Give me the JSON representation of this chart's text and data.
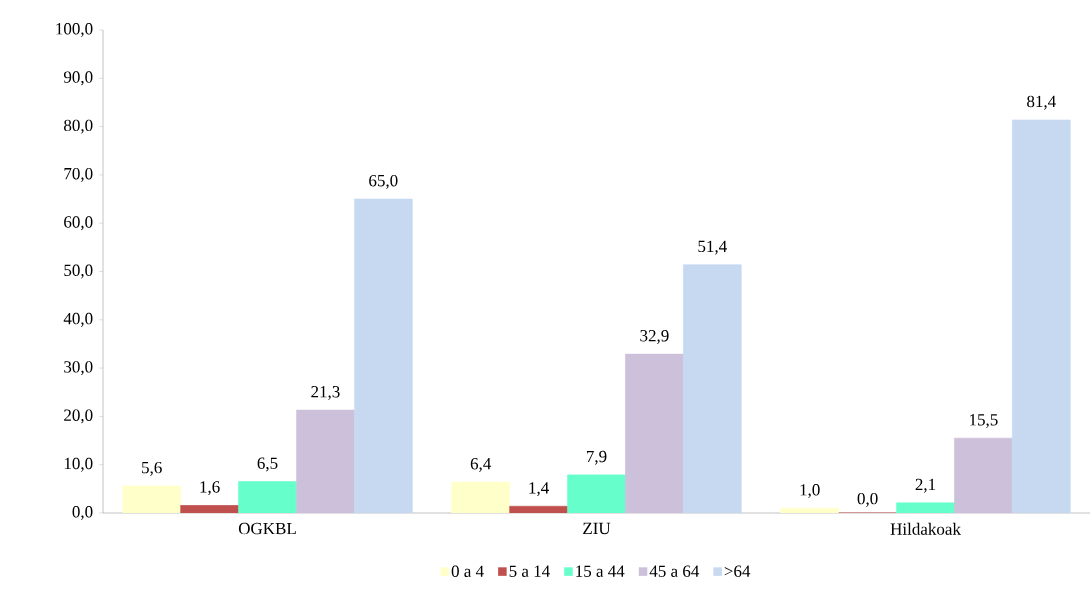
{
  "chart_data": {
    "type": "bar",
    "categories": [
      "OGKBL",
      "ZIU",
      "Hildakoak"
    ],
    "series": [
      {
        "name": "0 a 4",
        "color": "#ffffc9",
        "values": [
          5.6,
          6.4,
          1.0
        ],
        "value_labels": [
          "5,6",
          "6,4",
          "1,0"
        ]
      },
      {
        "name": "5 a 14",
        "color": "#c0504d",
        "values": [
          1.6,
          1.4,
          0.0
        ],
        "value_labels": [
          "1,6",
          "1,4",
          "0,0"
        ]
      },
      {
        "name": "15 a 44",
        "color": "#66ffcc",
        "values": [
          6.5,
          7.9,
          2.1
        ],
        "value_labels": [
          "6,5",
          "7,9",
          "2,1"
        ]
      },
      {
        "name": "45 a 64",
        "color": "#ccc0da",
        "values": [
          21.3,
          32.9,
          15.5
        ],
        "value_labels": [
          "21,3",
          "32,9",
          "15,5"
        ]
      },
      {
        "name": ">64",
        "color": "#c6d9f1",
        "values": [
          65.0,
          51.4,
          81.4
        ],
        "value_labels": [
          "65,0",
          "51,4",
          "81,4"
        ]
      }
    ],
    "ylim": [
      0,
      100
    ],
    "yticks": [
      {
        "value": 0,
        "label": "0,0"
      },
      {
        "value": 10,
        "label": "10,0"
      },
      {
        "value": 20,
        "label": "20,0"
      },
      {
        "value": 30,
        "label": "30,0"
      },
      {
        "value": 40,
        "label": "40,0"
      },
      {
        "value": 50,
        "label": "50,0"
      },
      {
        "value": 60,
        "label": "60,0"
      },
      {
        "value": 70,
        "label": "70,0"
      },
      {
        "value": 80,
        "label": "80,0"
      },
      {
        "value": 90,
        "label": "90,0"
      },
      {
        "value": 100,
        "label": "100,0"
      }
    ],
    "grid": false,
    "legend": "bottom"
  }
}
